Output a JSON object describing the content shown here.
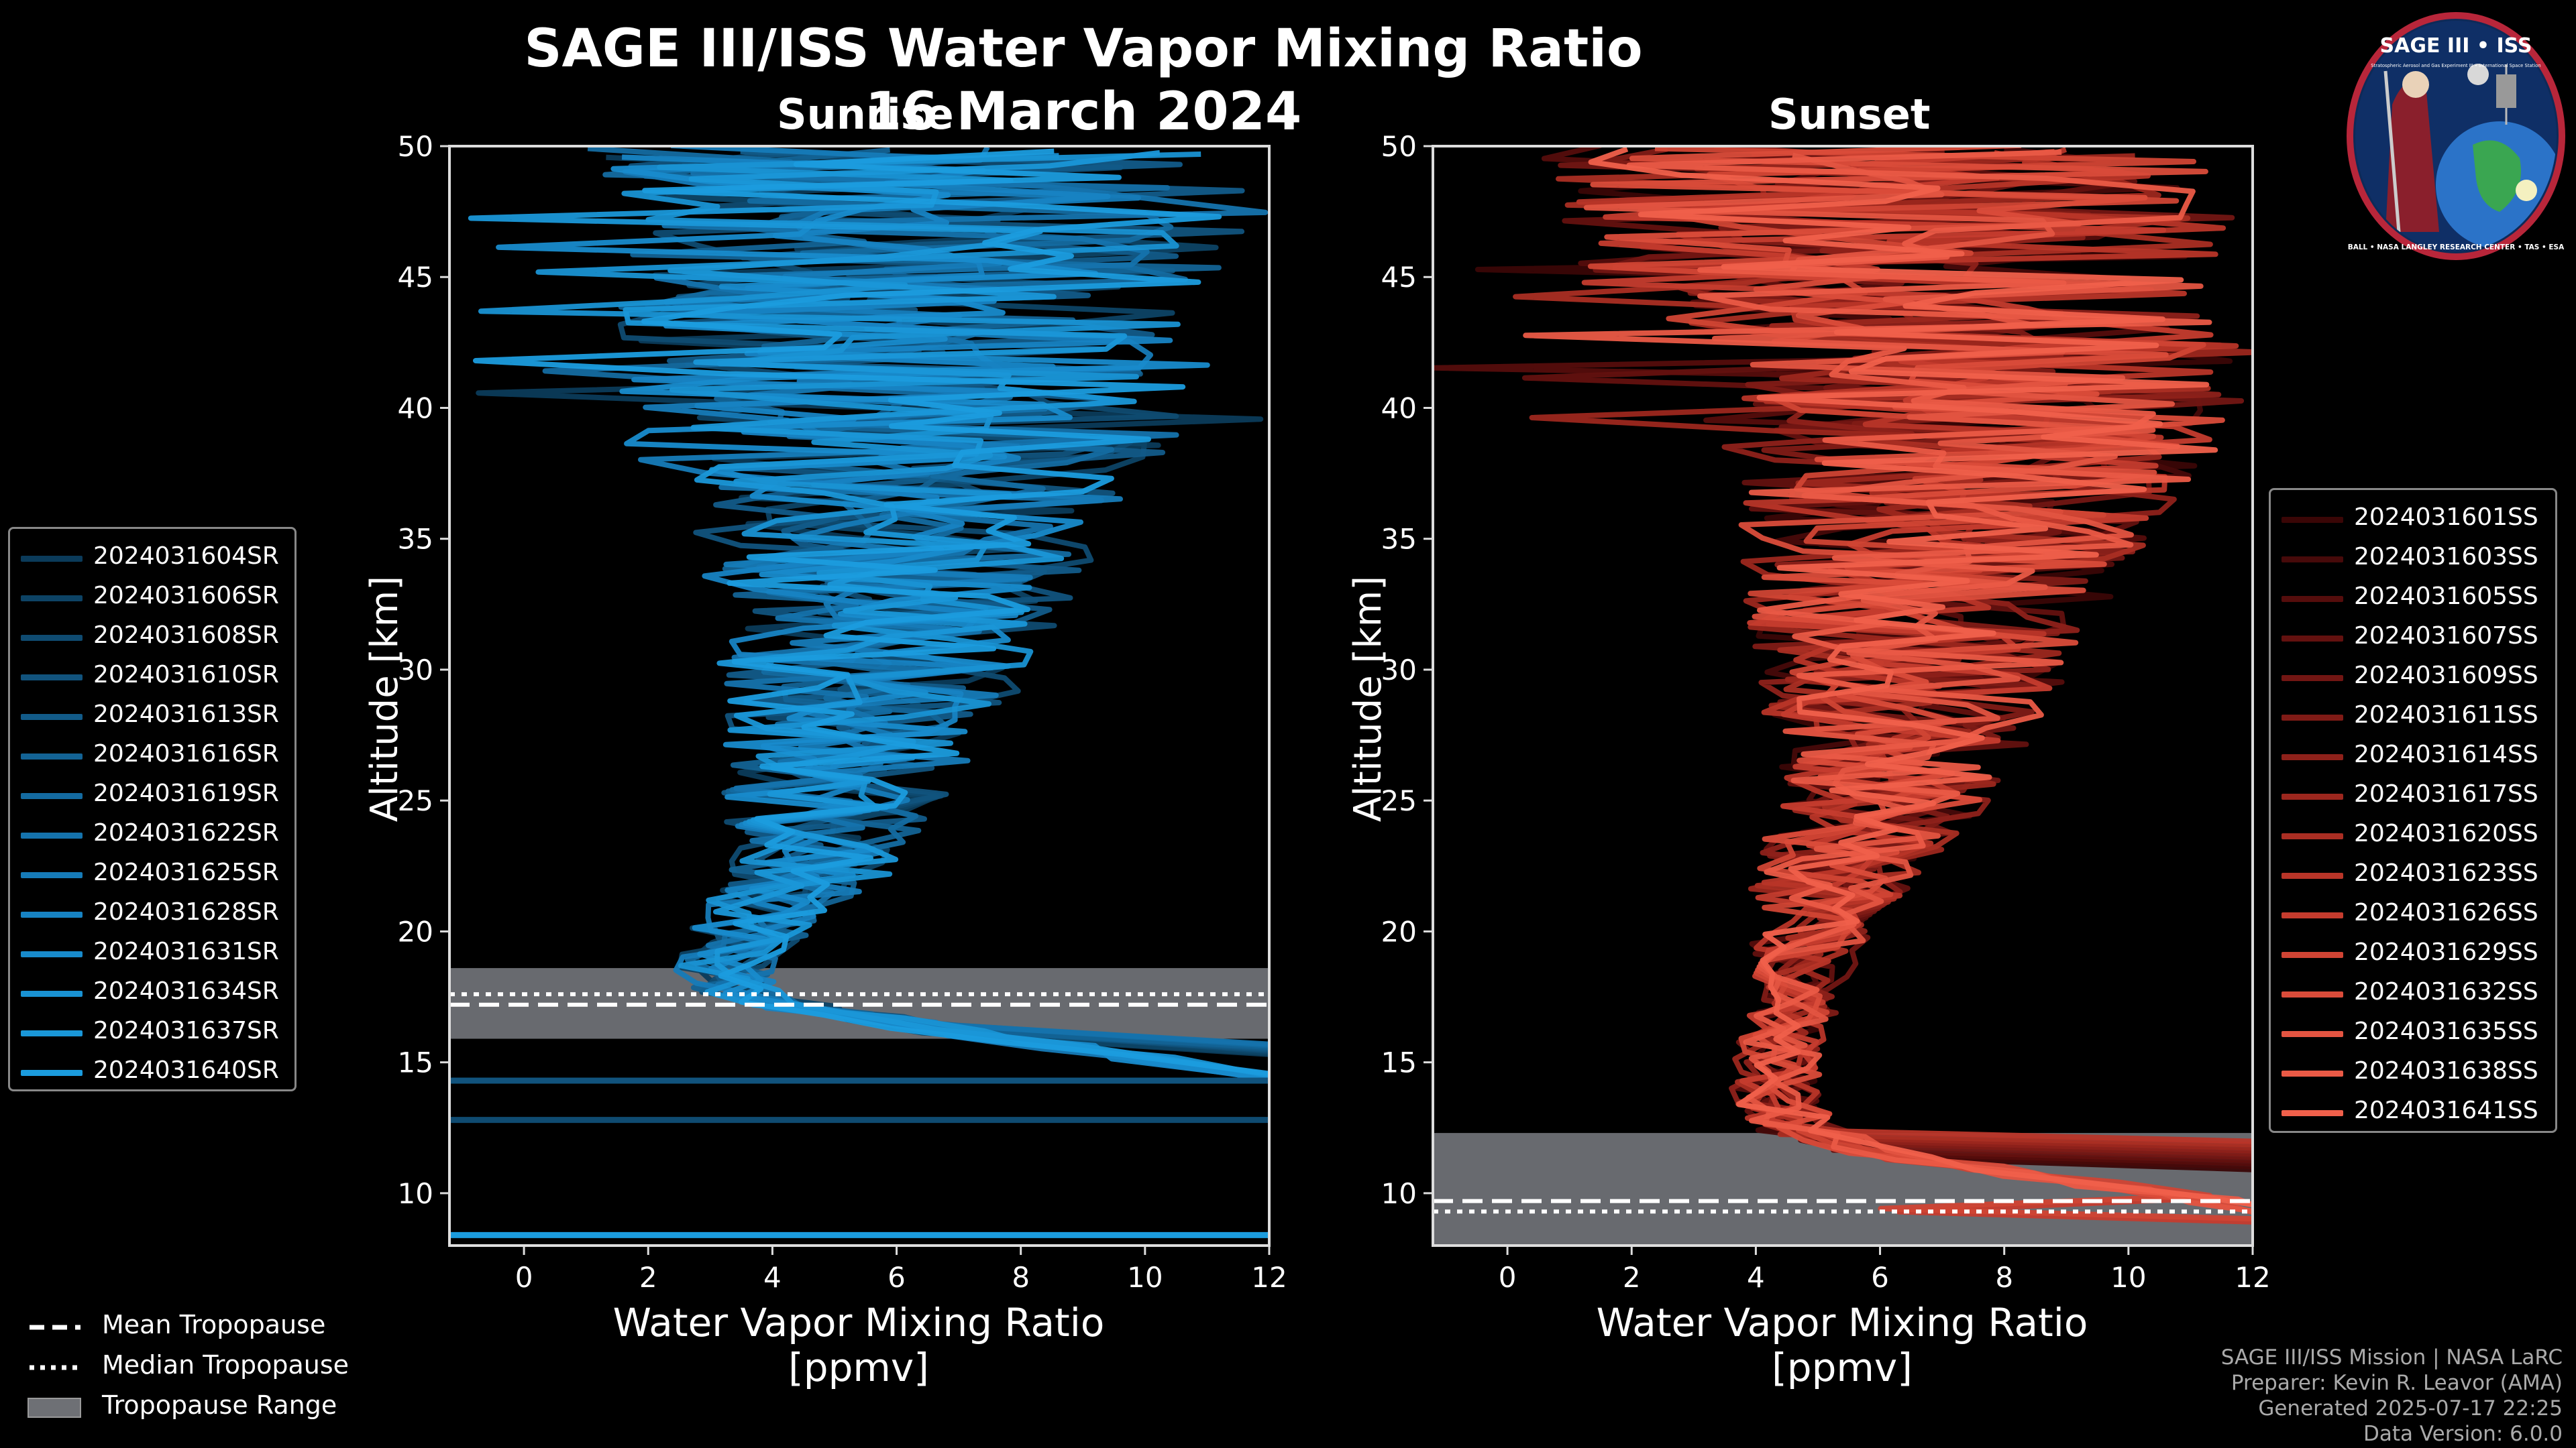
{
  "header": {
    "title": "SAGE III/ISS Water Vapor Mixing Ratio",
    "date": "16 March 2024"
  },
  "logo": {
    "title": "SAGE III • ISS",
    "subtitle_text": "Stratospheric Aerosol and Gas Experiment III • International Space Station",
    "ring_text": "BALL • NASA LANGLEY RESEARCH CENTER • TAS • ESA"
  },
  "colors": {
    "background": "#000000",
    "sunrise_base": "#1a9ad9",
    "sunset_base": "#f25c4a",
    "tropopause_range": "#6e7075"
  },
  "chart_data": [
    {
      "type": "line",
      "title": "Sunrise",
      "xlabel": "Water Vapor Mixing Ratio\n[ppmv]",
      "xlabel_line1": "Water Vapor Mixing Ratio",
      "xlabel_line2": "[ppmv]",
      "ylabel": "Altitude [km]",
      "xlim": [
        -1.2,
        12
      ],
      "ylim": [
        8,
        50
      ],
      "xticks": [
        0,
        2,
        4,
        6,
        8,
        10,
        12
      ],
      "yticks": [
        10,
        15,
        20,
        25,
        30,
        35,
        40,
        45,
        50
      ],
      "tropopause": {
        "mean": 17.2,
        "median": 17.6,
        "range": [
          15.9,
          18.6
        ]
      },
      "series_profile": [
        {
          "alt": 8.3,
          "x": 12
        },
        {
          "alt": 12.8,
          "x": 12
        },
        {
          "alt": 14.3,
          "x": 12
        },
        {
          "alt": 15.5,
          "x": 9.0
        },
        {
          "alt": 16.5,
          "x": 6.0
        },
        {
          "alt": 17.5,
          "x": 3.5
        },
        {
          "alt": 18.5,
          "x": 3.2
        },
        {
          "alt": 20,
          "x": 3.6
        },
        {
          "alt": 22,
          "x": 4.5
        },
        {
          "alt": 25,
          "x": 5.0
        },
        {
          "alt": 28,
          "x": 5.4
        },
        {
          "alt": 31,
          "x": 5.8
        },
        {
          "alt": 34,
          "x": 6.0
        },
        {
          "alt": 37,
          "x": 6.2
        },
        {
          "alt": 40,
          "x": 6.6
        },
        {
          "alt": 43,
          "x": 6.0
        },
        {
          "alt": 46,
          "x": 6.5
        },
        {
          "alt": 50,
          "x": 6.5
        }
      ],
      "series": [
        {
          "name": "2024031604SR",
          "color": "#0b3b5a"
        },
        {
          "name": "2024031606SR",
          "color": "#0d4365"
        },
        {
          "name": "2024031608SR",
          "color": "#0f4b71"
        },
        {
          "name": "2024031610SR",
          "color": "#11537d"
        },
        {
          "name": "2024031613SR",
          "color": "#125b89"
        },
        {
          "name": "2024031616SR",
          "color": "#136395"
        },
        {
          "name": "2024031619SR",
          "color": "#146ba1"
        },
        {
          "name": "2024031622SR",
          "color": "#1573ad"
        },
        {
          "name": "2024031625SR",
          "color": "#167bb8"
        },
        {
          "name": "2024031628SR",
          "color": "#1783c3"
        },
        {
          "name": "2024031631SR",
          "color": "#188bcc"
        },
        {
          "name": "2024031634SR",
          "color": "#1992d3"
        },
        {
          "name": "2024031637SR",
          "color": "#1a97d8"
        },
        {
          "name": "2024031640SR",
          "color": "#1b9cde"
        }
      ]
    },
    {
      "type": "line",
      "title": "Sunset",
      "xlabel": "Water Vapor Mixing Ratio\n[ppmv]",
      "xlabel_line1": "Water Vapor Mixing Ratio",
      "xlabel_line2": "[ppmv]",
      "ylabel": "Altitude [km]",
      "xlim": [
        -1.2,
        12
      ],
      "ylim": [
        8,
        50
      ],
      "xticks": [
        0,
        2,
        4,
        6,
        8,
        10,
        12
      ],
      "yticks": [
        10,
        15,
        20,
        25,
        30,
        35,
        40,
        45,
        50
      ],
      "tropopause": {
        "mean": 9.7,
        "median": 9.3,
        "range": [
          8,
          12.3
        ]
      },
      "series_profile": [
        {
          "alt": 9.5,
          "x": 12
        },
        {
          "alt": 10.5,
          "x": 9.0
        },
        {
          "alt": 11.5,
          "x": 6.0
        },
        {
          "alt": 12.5,
          "x": 4.6
        },
        {
          "alt": 14,
          "x": 4.3
        },
        {
          "alt": 15.5,
          "x": 4.4
        },
        {
          "alt": 17,
          "x": 4.6
        },
        {
          "alt": 19,
          "x": 4.8
        },
        {
          "alt": 21,
          "x": 5.0
        },
        {
          "alt": 24,
          "x": 5.8
        },
        {
          "alt": 27,
          "x": 6.3
        },
        {
          "alt": 30,
          "x": 6.5
        },
        {
          "alt": 33,
          "x": 6.8
        },
        {
          "alt": 36,
          "x": 7.2
        },
        {
          "alt": 39,
          "x": 7.5
        },
        {
          "alt": 42,
          "x": 7.8
        },
        {
          "alt": 45,
          "x": 6.0
        },
        {
          "alt": 50,
          "x": 6.0
        }
      ],
      "series": [
        {
          "name": "2024031601SS",
          "color": "#3a0606"
        },
        {
          "name": "2024031603SS",
          "color": "#470a0a"
        },
        {
          "name": "2024031605SS",
          "color": "#550d0c"
        },
        {
          "name": "2024031607SS",
          "color": "#63110f"
        },
        {
          "name": "2024031609SS",
          "color": "#721613"
        },
        {
          "name": "2024031611SS",
          "color": "#801b16"
        },
        {
          "name": "2024031614SS",
          "color": "#8e211a"
        },
        {
          "name": "2024031617SS",
          "color": "#9c271e"
        },
        {
          "name": "2024031620SS",
          "color": "#aa2e23"
        },
        {
          "name": "2024031623SS",
          "color": "#b83528"
        },
        {
          "name": "2024031626SS",
          "color": "#c53c2e"
        },
        {
          "name": "2024031629SS",
          "color": "#d04434"
        },
        {
          "name": "2024031632SS",
          "color": "#da4c3a"
        },
        {
          "name": "2024031635SS",
          "color": "#e35441"
        },
        {
          "name": "2024031638SS",
          "color": "#ea5a46"
        },
        {
          "name": "2024031641SS",
          "color": "#f0604b"
        }
      ]
    }
  ],
  "bottom_legend": {
    "mean": "Mean Tropopause",
    "median": "Median Tropopause",
    "range": "Tropopause Range"
  },
  "credits": {
    "line1": "SAGE III/ISS Mission | NASA LaRC",
    "line2": "Preparer: Kevin R. Leavor (AMA)",
    "line3": "Generated 2025-07-17 22:25",
    "line4": "Data Version: 6.0.0"
  }
}
